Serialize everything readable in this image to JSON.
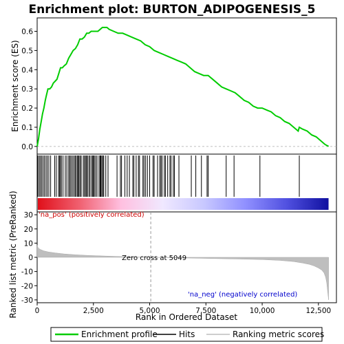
{
  "chart_data": {
    "type": "line",
    "title": "Enrichment plot: BURTON_ADIPOGENESIS_5",
    "xlabel": "Rank in Ordered Dataset",
    "top_panel": {
      "ylabel": "Enrichment score (ES)",
      "ylim": [
        -0.04,
        0.67
      ],
      "yticks": [
        0.0,
        0.1,
        0.2,
        0.3,
        0.4,
        0.5,
        0.6
      ],
      "ytick_labels": [
        "0.0",
        "0.1",
        "0.2",
        "0.3",
        "0.4",
        "0.5",
        "0.6"
      ],
      "series_name": "Enrichment profile",
      "series_color": "#00cc00",
      "profile": {
        "x": [
          0,
          60,
          120,
          180,
          240,
          300,
          360,
          420,
          480,
          560,
          640,
          720,
          800,
          880,
          960,
          1040,
          1120,
          1200,
          1300,
          1400,
          1500,
          1600,
          1700,
          1800,
          1900,
          2000,
          2100,
          2200,
          2300,
          2400,
          2500,
          2600,
          2700,
          2800,
          2900,
          3000,
          3100,
          3200,
          3400,
          3600,
          3800,
          4000,
          4200,
          4400,
          4600,
          4800,
          5000,
          5200,
          5400,
          5600,
          5800,
          6000,
          6200,
          6400,
          6600,
          6800,
          7000,
          7200,
          7400,
          7600,
          7800,
          8000,
          8200,
          8400,
          8600,
          8800,
          9000,
          9200,
          9400,
          9600,
          9800,
          10000,
          10200,
          10400,
          10600,
          10800,
          11000,
          11200,
          11400,
          11600,
          11650,
          11800,
          12000,
          12200,
          12400,
          12600,
          12800,
          12950
        ],
        "y": [
          0.0,
          0.04,
          0.09,
          0.13,
          0.17,
          0.2,
          0.24,
          0.27,
          0.3,
          0.3,
          0.31,
          0.33,
          0.34,
          0.35,
          0.38,
          0.41,
          0.41,
          0.42,
          0.43,
          0.46,
          0.48,
          0.5,
          0.51,
          0.53,
          0.56,
          0.56,
          0.57,
          0.59,
          0.59,
          0.6,
          0.6,
          0.6,
          0.6,
          0.61,
          0.62,
          0.62,
          0.62,
          0.61,
          0.6,
          0.59,
          0.59,
          0.58,
          0.57,
          0.56,
          0.55,
          0.53,
          0.52,
          0.5,
          0.49,
          0.48,
          0.47,
          0.46,
          0.45,
          0.44,
          0.43,
          0.41,
          0.39,
          0.38,
          0.37,
          0.37,
          0.35,
          0.33,
          0.31,
          0.3,
          0.29,
          0.28,
          0.26,
          0.24,
          0.23,
          0.21,
          0.2,
          0.2,
          0.19,
          0.18,
          0.16,
          0.15,
          0.13,
          0.12,
          0.1,
          0.08,
          0.1,
          0.09,
          0.08,
          0.06,
          0.05,
          0.03,
          0.01,
          0.0
        ]
      }
    },
    "hits": {
      "series_name": "Hits",
      "positions": [
        30,
        90,
        140,
        200,
        260,
        320,
        390,
        450,
        520,
        600,
        780,
        850,
        950,
        1000,
        1030,
        1080,
        1150,
        1250,
        1320,
        1400,
        1450,
        1500,
        1560,
        1620,
        1680,
        1720,
        1780,
        1820,
        1860,
        1910,
        1960,
        2050,
        2100,
        2150,
        2200,
        2230,
        2300,
        2350,
        2420,
        2470,
        2500,
        2540,
        2600,
        2660,
        2750,
        2800,
        2830,
        2870,
        2920,
        2960,
        3050,
        3150,
        3550,
        3700,
        3750,
        3900,
        4000,
        4100,
        4250,
        4300,
        4400,
        4500,
        4550,
        4700,
        4750,
        4820,
        4900,
        5000,
        5150,
        5200,
        5350,
        5450,
        5500,
        5550,
        5650,
        5700,
        5800,
        5900,
        5950,
        6050,
        6100,
        6300,
        6850,
        7050,
        7300,
        7550,
        7600,
        8400,
        8750,
        9900,
        11650
      ]
    },
    "metric_panel": {
      "ylabel": "Ranked list metric (PreRanked)",
      "ylim": [
        -32,
        32
      ],
      "yticks": [
        -30,
        -20,
        -10,
        0,
        10,
        20,
        30
      ],
      "ytick_labels": [
        "-30",
        "-20",
        "-10",
        "0",
        "10",
        "20",
        "30"
      ],
      "series_name": "Ranking metric scores",
      "fill_color": "#bebebe",
      "metric": {
        "x": [
          0,
          50,
          150,
          300,
          500,
          800,
          1200,
          1700,
          2300,
          3000,
          3800,
          4500,
          5049,
          6000,
          7000,
          8000,
          9000,
          10000,
          10800,
          11400,
          11800,
          12100,
          12300,
          12500,
          12650,
          12750,
          12820,
          12870,
          12910,
          12950
        ],
        "y": [
          8.5,
          6.5,
          5.5,
          4.5,
          3.8,
          3.1,
          2.4,
          1.8,
          1.3,
          0.9,
          0.5,
          0.2,
          0.0,
          -0.3,
          -0.6,
          -0.9,
          -1.2,
          -1.6,
          -2.2,
          -3.0,
          -4.0,
          -5.0,
          -6.0,
          -7.5,
          -9.0,
          -11.0,
          -14.0,
          -18.0,
          -24.0,
          -30.0
        ]
      },
      "zero_cross_label": "Zero cross at 5049",
      "zero_cross_x": 5049,
      "pos_label": "'na_pos' (positively correlated)",
      "pos_color": "#cc0000",
      "neg_label": "'na_neg' (negatively correlated)",
      "neg_color": "#0000cc"
    },
    "xlim": [
      0,
      13300
    ],
    "xticks": [
      0,
      2500,
      5000,
      7500,
      10000,
      12500
    ],
    "xtick_labels": [
      "0",
      "2,500",
      "5,000",
      "7,500",
      "10,000",
      "12,500"
    ],
    "total_genes": 12950,
    "colorbar_stops": [
      "#e0101a",
      "#f06070",
      "#ffc0e0",
      "#f0e8ff",
      "#c8c8ff",
      "#9090ff",
      "#5050e0",
      "#1010a0"
    ],
    "legend": {
      "items": [
        {
          "name": "Enrichment profile",
          "color": "#00cc00"
        },
        {
          "name": "Hits",
          "color": "#000000"
        },
        {
          "name": "Ranking metric scores",
          "color": "#bebebe"
        }
      ],
      "placement": "bottom"
    }
  }
}
